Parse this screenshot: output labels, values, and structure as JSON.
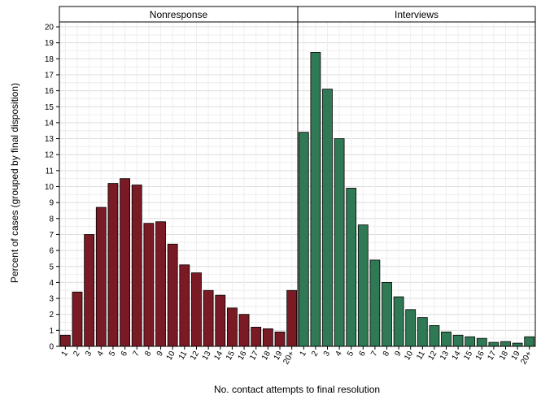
{
  "chart_data": {
    "type": "bar",
    "ylabel": "Percent of cases (grouped by final disposition)",
    "xlabel": "No. contact attempts to final resolution",
    "ylim": [
      0,
      20
    ],
    "y_ticks": [
      0,
      1,
      2,
      3,
      4,
      5,
      6,
      7,
      8,
      9,
      10,
      11,
      12,
      13,
      14,
      15,
      16,
      17,
      18,
      19,
      20
    ],
    "grid": true,
    "categories": [
      "1",
      "2",
      "3",
      "4",
      "5",
      "6",
      "7",
      "8",
      "9",
      "10",
      "11",
      "12",
      "13",
      "14",
      "15",
      "16",
      "17",
      "18",
      "19",
      "20+"
    ],
    "panels": [
      {
        "title": "Nonresponse",
        "color": "#7a1a24",
        "values": [
          0.7,
          3.4,
          7.0,
          8.7,
          10.2,
          10.5,
          10.1,
          7.7,
          7.8,
          6.4,
          5.1,
          4.6,
          3.5,
          3.2,
          2.4,
          2.0,
          1.2,
          1.1,
          0.9,
          3.5
        ]
      },
      {
        "title": "Interviews",
        "color": "#2f7a55",
        "values": [
          13.4,
          18.4,
          16.1,
          13.0,
          9.9,
          7.6,
          5.4,
          4.0,
          3.1,
          2.3,
          1.8,
          1.3,
          0.9,
          0.7,
          0.6,
          0.5,
          0.25,
          0.3,
          0.2,
          0.6
        ]
      }
    ]
  }
}
